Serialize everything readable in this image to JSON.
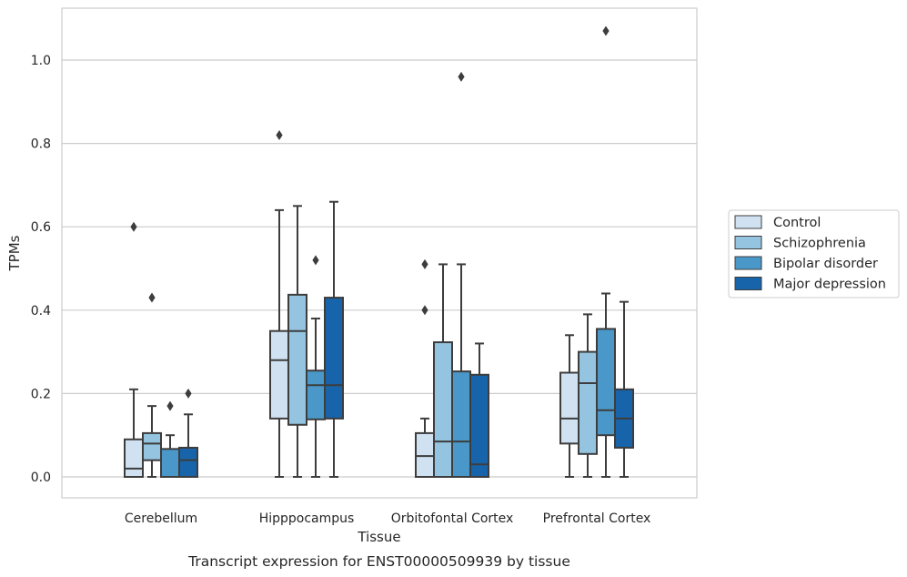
{
  "chart_data": {
    "type": "boxplot",
    "caption": "Transcript expression for ENST00000509939 by tissue",
    "xlabel": "Tissue",
    "ylabel": "TPMs",
    "ylim": [
      -0.05,
      1.13
    ],
    "yticks": [
      0.0,
      0.2,
      0.4,
      0.6,
      0.8,
      1.0
    ],
    "ytick_labels": [
      "0.0",
      "0.2",
      "0.4",
      "0.6",
      "0.8",
      "1.0"
    ],
    "grid": "horizontal",
    "legend_position": "right",
    "categories": [
      "Cerebellum",
      "Hipppocampus",
      "Orbitofontal Cortex",
      "Prefrontal Cortex"
    ],
    "series": [
      {
        "name": "Control",
        "color": "#d0e1f2",
        "boxes": [
          {
            "whislo": 0.0,
            "q1": 0.0,
            "med": 0.02,
            "q3": 0.09,
            "whishi": 0.21,
            "fliers": [
              0.6
            ]
          },
          {
            "whislo": 0.0,
            "q1": 0.14,
            "med": 0.28,
            "q3": 0.35,
            "whishi": 0.64,
            "fliers": [
              0.82
            ]
          },
          {
            "whislo": 0.0,
            "q1": 0.0,
            "med": 0.05,
            "q3": 0.105,
            "whishi": 0.14,
            "fliers": [
              0.4,
              0.51
            ]
          },
          {
            "whislo": 0.0,
            "q1": 0.08,
            "med": 0.14,
            "q3": 0.25,
            "whishi": 0.34,
            "fliers": []
          }
        ]
      },
      {
        "name": "Schizophrenia",
        "color": "#94c4df",
        "boxes": [
          {
            "whislo": 0.0,
            "q1": 0.04,
            "med": 0.08,
            "q3": 0.105,
            "whishi": 0.17,
            "fliers": [
              0.43
            ]
          },
          {
            "whislo": 0.0,
            "q1": 0.125,
            "med": 0.35,
            "q3": 0.437,
            "whishi": 0.65,
            "fliers": []
          },
          {
            "whislo": 0.0,
            "q1": 0.0,
            "med": 0.085,
            "q3": 0.323,
            "whishi": 0.51,
            "fliers": []
          },
          {
            "whislo": 0.0,
            "q1": 0.055,
            "med": 0.225,
            "q3": 0.3,
            "whishi": 0.39,
            "fliers": []
          }
        ]
      },
      {
        "name": "Bipolar disorder",
        "color": "#4a98c9",
        "boxes": [
          {
            "whislo": 0.0,
            "q1": 0.0,
            "med": 0.0,
            "q3": 0.067,
            "whishi": 0.1,
            "fliers": [
              0.17
            ]
          },
          {
            "whislo": 0.0,
            "q1": 0.138,
            "med": 0.22,
            "q3": 0.255,
            "whishi": 0.38,
            "fliers": [
              0.52
            ]
          },
          {
            "whislo": 0.0,
            "q1": 0.0,
            "med": 0.085,
            "q3": 0.253,
            "whishi": 0.51,
            "fliers": [
              0.96
            ]
          },
          {
            "whislo": 0.0,
            "q1": 0.1,
            "med": 0.16,
            "q3": 0.355,
            "whishi": 0.44,
            "fliers": [
              1.07
            ]
          }
        ]
      },
      {
        "name": "Major depression",
        "color": "#1764ab",
        "boxes": [
          {
            "whislo": 0.0,
            "q1": 0.0,
            "med": 0.04,
            "q3": 0.07,
            "whishi": 0.15,
            "fliers": [
              0.2
            ]
          },
          {
            "whislo": 0.0,
            "q1": 0.14,
            "med": 0.22,
            "q3": 0.43,
            "whishi": 0.66,
            "fliers": []
          },
          {
            "whislo": 0.0,
            "q1": 0.0,
            "med": 0.03,
            "q3": 0.245,
            "whishi": 0.32,
            "fliers": []
          },
          {
            "whislo": 0.0,
            "q1": 0.07,
            "med": 0.14,
            "q3": 0.21,
            "whishi": 0.42,
            "fliers": []
          }
        ]
      }
    ]
  },
  "colors": {
    "box_edge": "#3d3d3d",
    "grid": "#cccccc",
    "frame": "#cccccc",
    "text": "#262626"
  }
}
